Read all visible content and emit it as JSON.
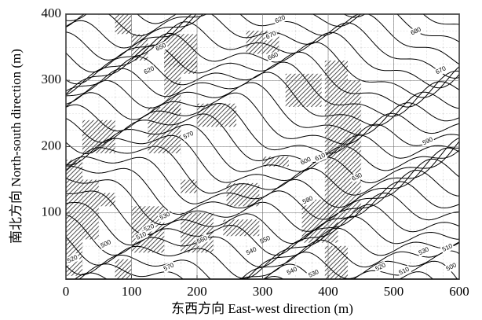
{
  "chart_data": {
    "type": "contour",
    "xlabel": "东西方向 East-west direction (m)",
    "ylabel": "南北方向 North-south direction (m)",
    "xlim": [
      0,
      600
    ],
    "ylim": [
      0,
      400
    ],
    "xticks": [
      0,
      100,
      200,
      300,
      400,
      500,
      600
    ],
    "yticks": [
      100,
      200,
      300,
      400
    ],
    "grid": true,
    "hatched_areas": [
      [
        0,
        25,
        5,
        180
      ],
      [
        25,
        75,
        190,
        240
      ],
      [
        25,
        50,
        60,
        150
      ],
      [
        50,
        75,
        110,
        130
      ],
      [
        100,
        150,
        40,
        110
      ],
      [
        75,
        100,
        0,
        30
      ],
      [
        125,
        175,
        190,
        260
      ],
      [
        150,
        175,
        250,
        340
      ],
      [
        100,
        125,
        330,
        370
      ],
      [
        75,
        100,
        370,
        400
      ],
      [
        150,
        200,
        320,
        370
      ],
      [
        175,
        200,
        130,
        150
      ],
      [
        175,
        225,
        40,
        100
      ],
      [
        275,
        325,
        340,
        375
      ],
      [
        200,
        260,
        230,
        265
      ],
      [
        300,
        340,
        170,
        185
      ],
      [
        335,
        390,
        260,
        310
      ],
      [
        395,
        430,
        90,
        330
      ],
      [
        430,
        450,
        100,
        300
      ],
      [
        360,
        415,
        55,
        120
      ],
      [
        395,
        430,
        0,
        50
      ],
      [
        240,
        295,
        65,
        90
      ],
      [
        245,
        295,
        110,
        145
      ],
      [
        175,
        200,
        310,
        330
      ]
    ],
    "contour_labels": [
      {
        "level": 620,
        "x": 327,
        "y": 392
      },
      {
        "level": 680,
        "x": 534,
        "y": 374
      },
      {
        "level": 670,
        "x": 313,
        "y": 368
      },
      {
        "level": 650,
        "x": 145,
        "y": 350
      },
      {
        "level": 660,
        "x": 316,
        "y": 336
      },
      {
        "level": 670,
        "x": 572,
        "y": 315
      },
      {
        "level": 620,
        "x": 127,
        "y": 315
      },
      {
        "level": 570,
        "x": 187,
        "y": 217
      },
      {
        "level": 590,
        "x": 552,
        "y": 208
      },
      {
        "level": 600,
        "x": 366,
        "y": 178
      },
      {
        "level": 610,
        "x": 388,
        "y": 184
      },
      {
        "level": 630,
        "x": 444,
        "y": 154
      },
      {
        "level": 580,
        "x": 369,
        "y": 119
      },
      {
        "level": 530,
        "x": 151,
        "y": 95
      },
      {
        "level": 520,
        "x": 127,
        "y": 77
      },
      {
        "level": 510,
        "x": 115,
        "y": 65
      },
      {
        "level": 500,
        "x": 61,
        "y": 53
      },
      {
        "level": 570,
        "x": 157,
        "y": 18
      },
      {
        "level": 560,
        "x": 208,
        "y": 59
      },
      {
        "level": 540,
        "x": 283,
        "y": 42
      },
      {
        "level": 550,
        "x": 304,
        "y": 59
      },
      {
        "level": 540,
        "x": 345,
        "y": 12
      },
      {
        "level": 530,
        "x": 378,
        "y": 8
      },
      {
        "level": 520,
        "x": 480,
        "y": 18
      },
      {
        "level": 510,
        "x": 516,
        "y": 12
      },
      {
        "level": 530,
        "x": 546,
        "y": 42
      },
      {
        "level": 510,
        "x": 582,
        "y": 47
      },
      {
        "level": 500,
        "x": 588,
        "y": 18
      },
      {
        "level": 520,
        "x": 10,
        "y": 30
      }
    ]
  }
}
